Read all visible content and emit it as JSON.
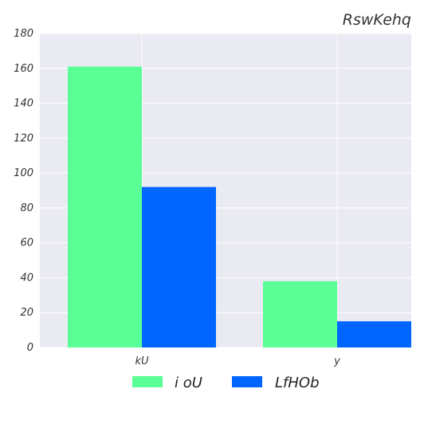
{
  "chart_data": {
    "type": "bar",
    "title": "RswKehq",
    "xlabel": "",
    "ylabel": "",
    "categories": [
      "kU",
      "y"
    ],
    "series": [
      {
        "name": "i oU",
        "values": [
          161,
          38
        ],
        "color": "#5aff96"
      },
      {
        "name": "LfHOb",
        "values": [
          92,
          15
        ],
        "color": "#0066ff"
      }
    ],
    "ylim": [
      0,
      180
    ],
    "yticks": [
      0,
      20,
      40,
      60,
      80,
      100,
      120,
      140,
      160,
      180
    ],
    "grid": true,
    "legend_position": "bottom-center",
    "background_color": "#eaeaf2",
    "grid_color": "#ffffff"
  }
}
